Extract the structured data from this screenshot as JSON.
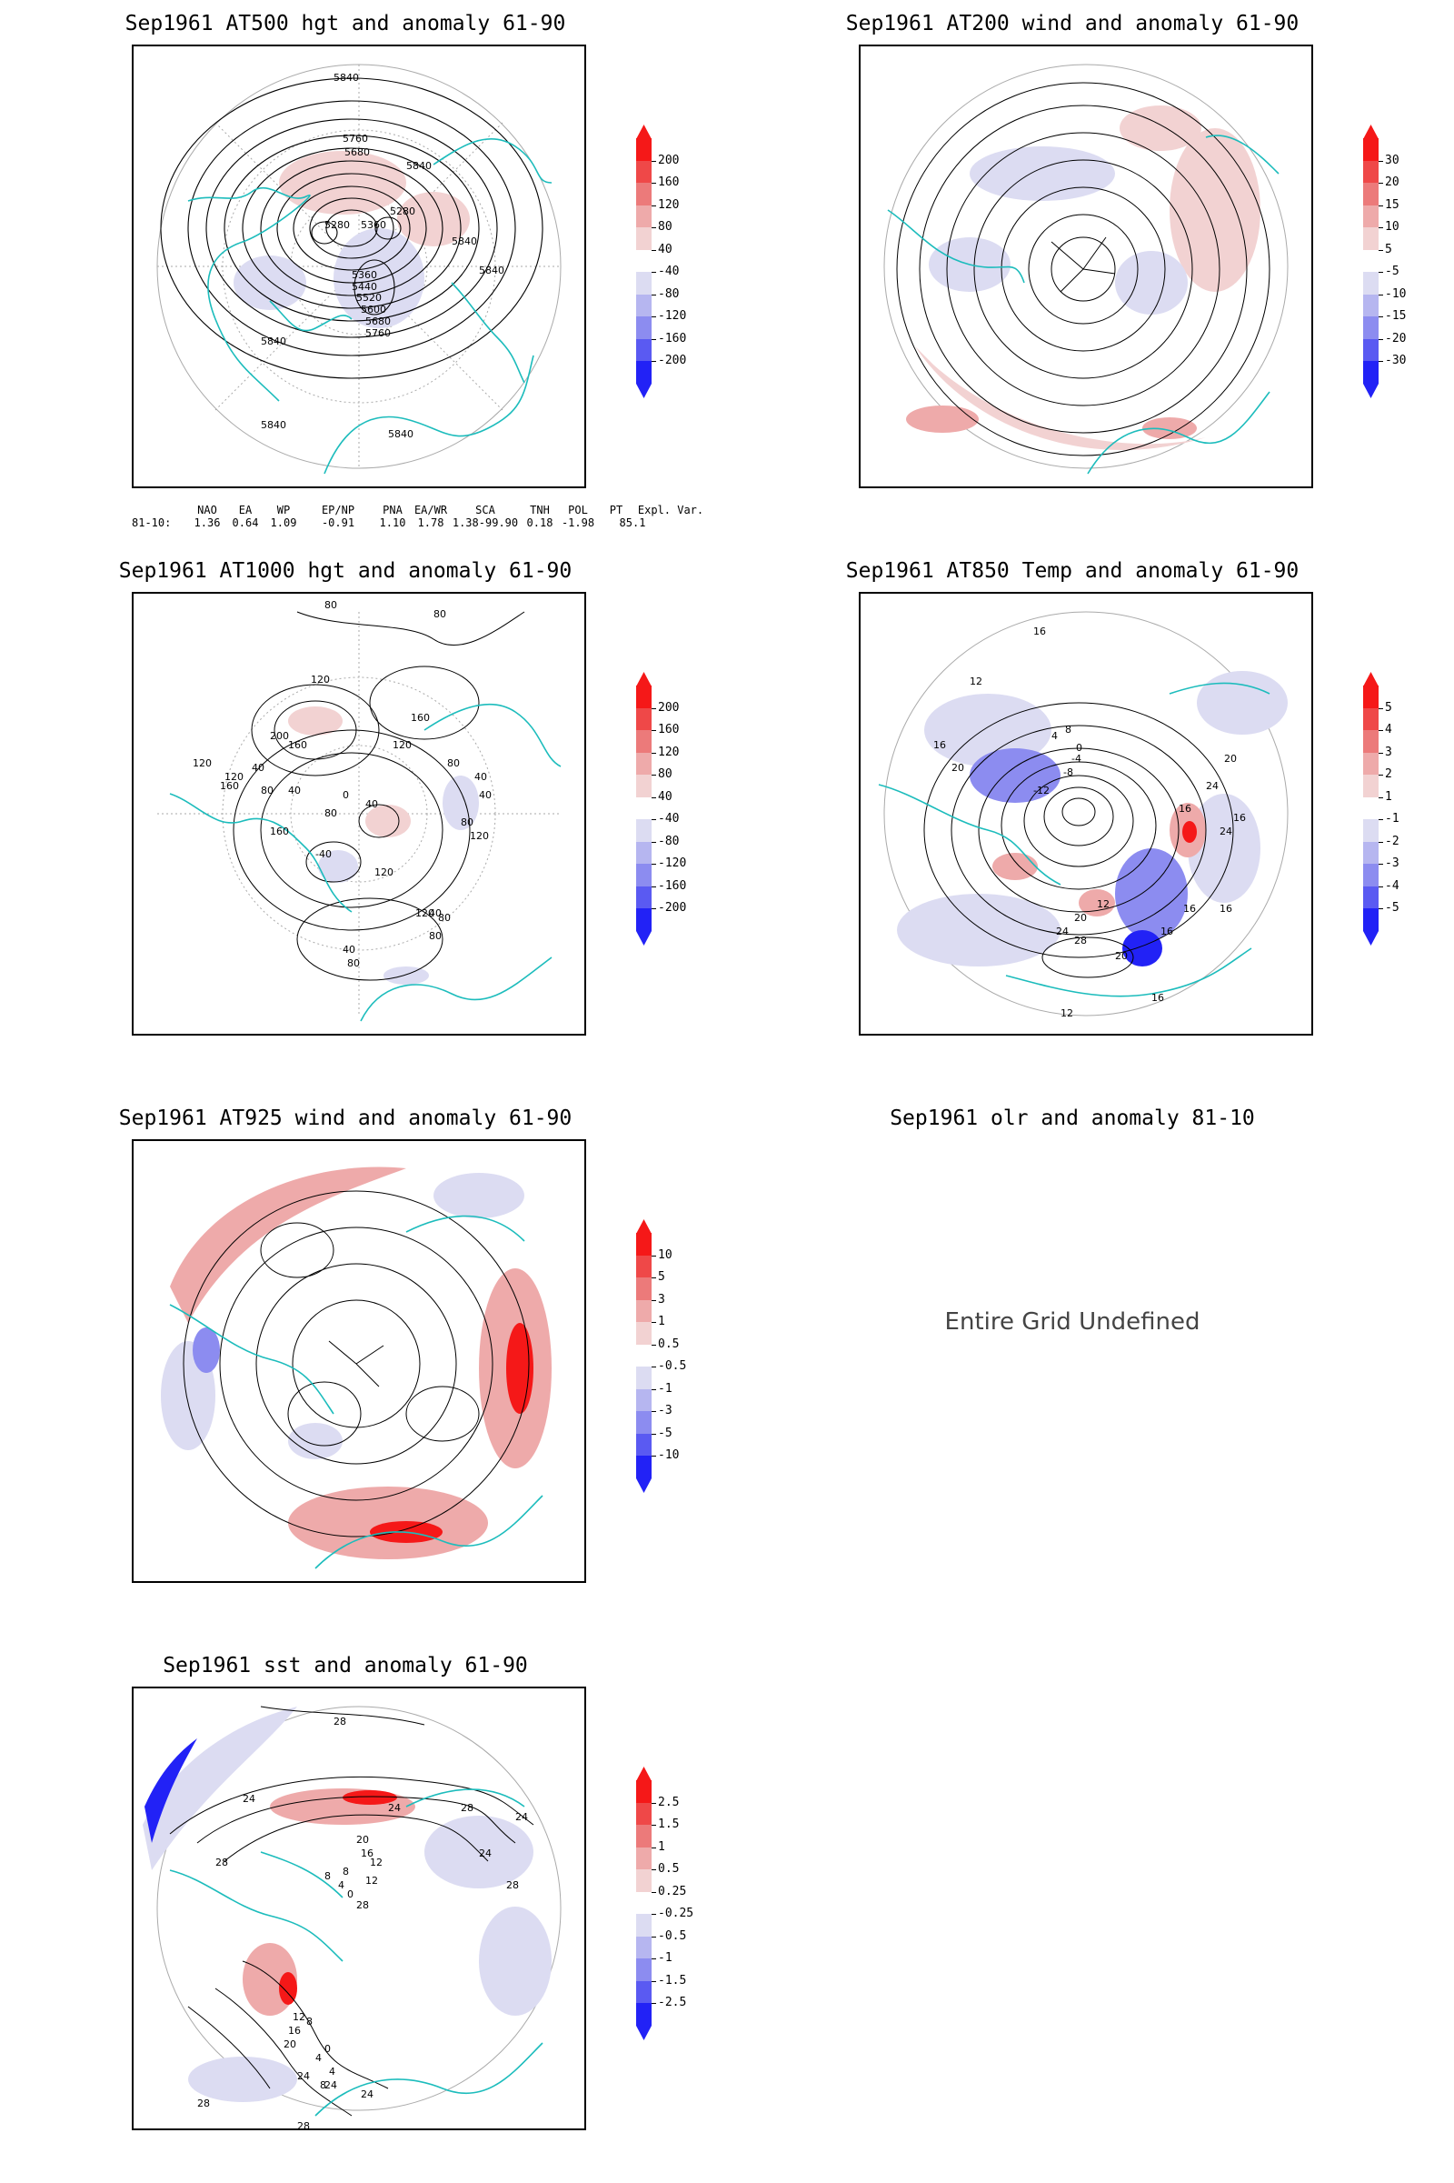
{
  "panels": {
    "p1": {
      "title": "Sep1961 AT500 hgt and anomaly 61-90",
      "contour_labels": [
        "5840",
        "5840",
        "5840",
        "5840",
        "5760",
        "5680",
        "5360",
        "5280",
        "5280",
        "5360",
        "5440",
        "5520",
        "5600",
        "5680",
        "5760",
        "5840",
        "5840",
        "5840"
      ],
      "colorbar": [
        "200",
        "160",
        "120",
        "80",
        "40",
        "-40",
        "-80",
        "-120",
        "-160",
        "-200"
      ],
      "teleconnections": {
        "headers": [
          "NAO",
          "EA",
          "WP",
          "EP/NP",
          "PNA",
          "EA/WR",
          "SCA",
          "TNH",
          "POL",
          "PT",
          "Expl. Var."
        ],
        "row_label": "81-10:",
        "values": [
          "1.36",
          "0.64",
          "1.09",
          "-0.91",
          "1.10",
          "1.78",
          "1.38",
          "-99.90",
          "0.18",
          "-1.98",
          "85.1"
        ]
      }
    },
    "p2": {
      "title": "Sep1961 AT200 wind and anomaly 61-90",
      "colorbar": [
        "30",
        "20",
        "15",
        "10",
        "5",
        "-5",
        "-10",
        "-15",
        "-20",
        "-30"
      ]
    },
    "p3": {
      "title": "Sep1961 AT1000 hgt and anomaly 61-90",
      "contour_labels": [
        "80",
        "80",
        "120",
        "160",
        "120",
        "200",
        "160",
        "120",
        "120",
        "160",
        "80",
        "40",
        "40",
        "0",
        "120",
        "160",
        "80",
        "40",
        "80",
        "40",
        "40",
        "120",
        "80",
        "40",
        "80",
        "80",
        "120",
        "40",
        "80",
        "-40"
      ],
      "colorbar": [
        "200",
        "160",
        "120",
        "80",
        "40",
        "-40",
        "-80",
        "-120",
        "-160",
        "-200"
      ]
    },
    "p4": {
      "title": "Sep1961 AT850 Temp and anomaly 61-90",
      "contour_labels": [
        "16",
        "12",
        "16",
        "20",
        "8",
        "4",
        "0",
        "-4",
        "-8",
        "-12",
        "16",
        "24",
        "20",
        "16",
        "12",
        "16",
        "20",
        "24",
        "28",
        "20",
        "16",
        "16",
        "24",
        "12",
        "16"
      ],
      "colorbar": [
        "5",
        "4",
        "3",
        "2",
        "1",
        "-1",
        "-2",
        "-3",
        "-4",
        "-5"
      ]
    },
    "p5": {
      "title": "Sep1961 AT925 wind and anomaly 61-90",
      "colorbar": [
        "10",
        "5",
        "3",
        "1",
        "0.5",
        "-0.5",
        "-1",
        "-3",
        "-5",
        "-10"
      ]
    },
    "p6": {
      "title": "Sep1961 olr and anomaly 81-10",
      "message": "Entire Grid Undefined"
    },
    "p7": {
      "title": "Sep1961 sst and anomaly 61-90",
      "contour_labels": [
        "28",
        "24",
        "24",
        "28",
        "20",
        "16",
        "12",
        "8",
        "12",
        "8",
        "4",
        "0",
        "28",
        "24",
        "28",
        "8",
        "4",
        "4",
        "0",
        "8",
        "12",
        "16",
        "20",
        "24",
        "24",
        "28",
        "28",
        "24",
        "28",
        "24"
      ],
      "colorbar": [
        "2.5",
        "1.5",
        "1",
        "0.5",
        "0.25",
        "-0.25",
        "-0.5",
        "-1",
        "-1.5",
        "-2.5"
      ]
    }
  },
  "colors": {
    "positive": [
      "#f2d2d2",
      "#eeaaaa",
      "#ec7a7a",
      "#ef4848",
      "#f51818"
    ],
    "negative": [
      "#dcdcf2",
      "#b6b6f0",
      "#8c8cf0",
      "#5a5af2",
      "#2222f6"
    ],
    "coast": "#1cbcbc",
    "contour": "#000000"
  }
}
